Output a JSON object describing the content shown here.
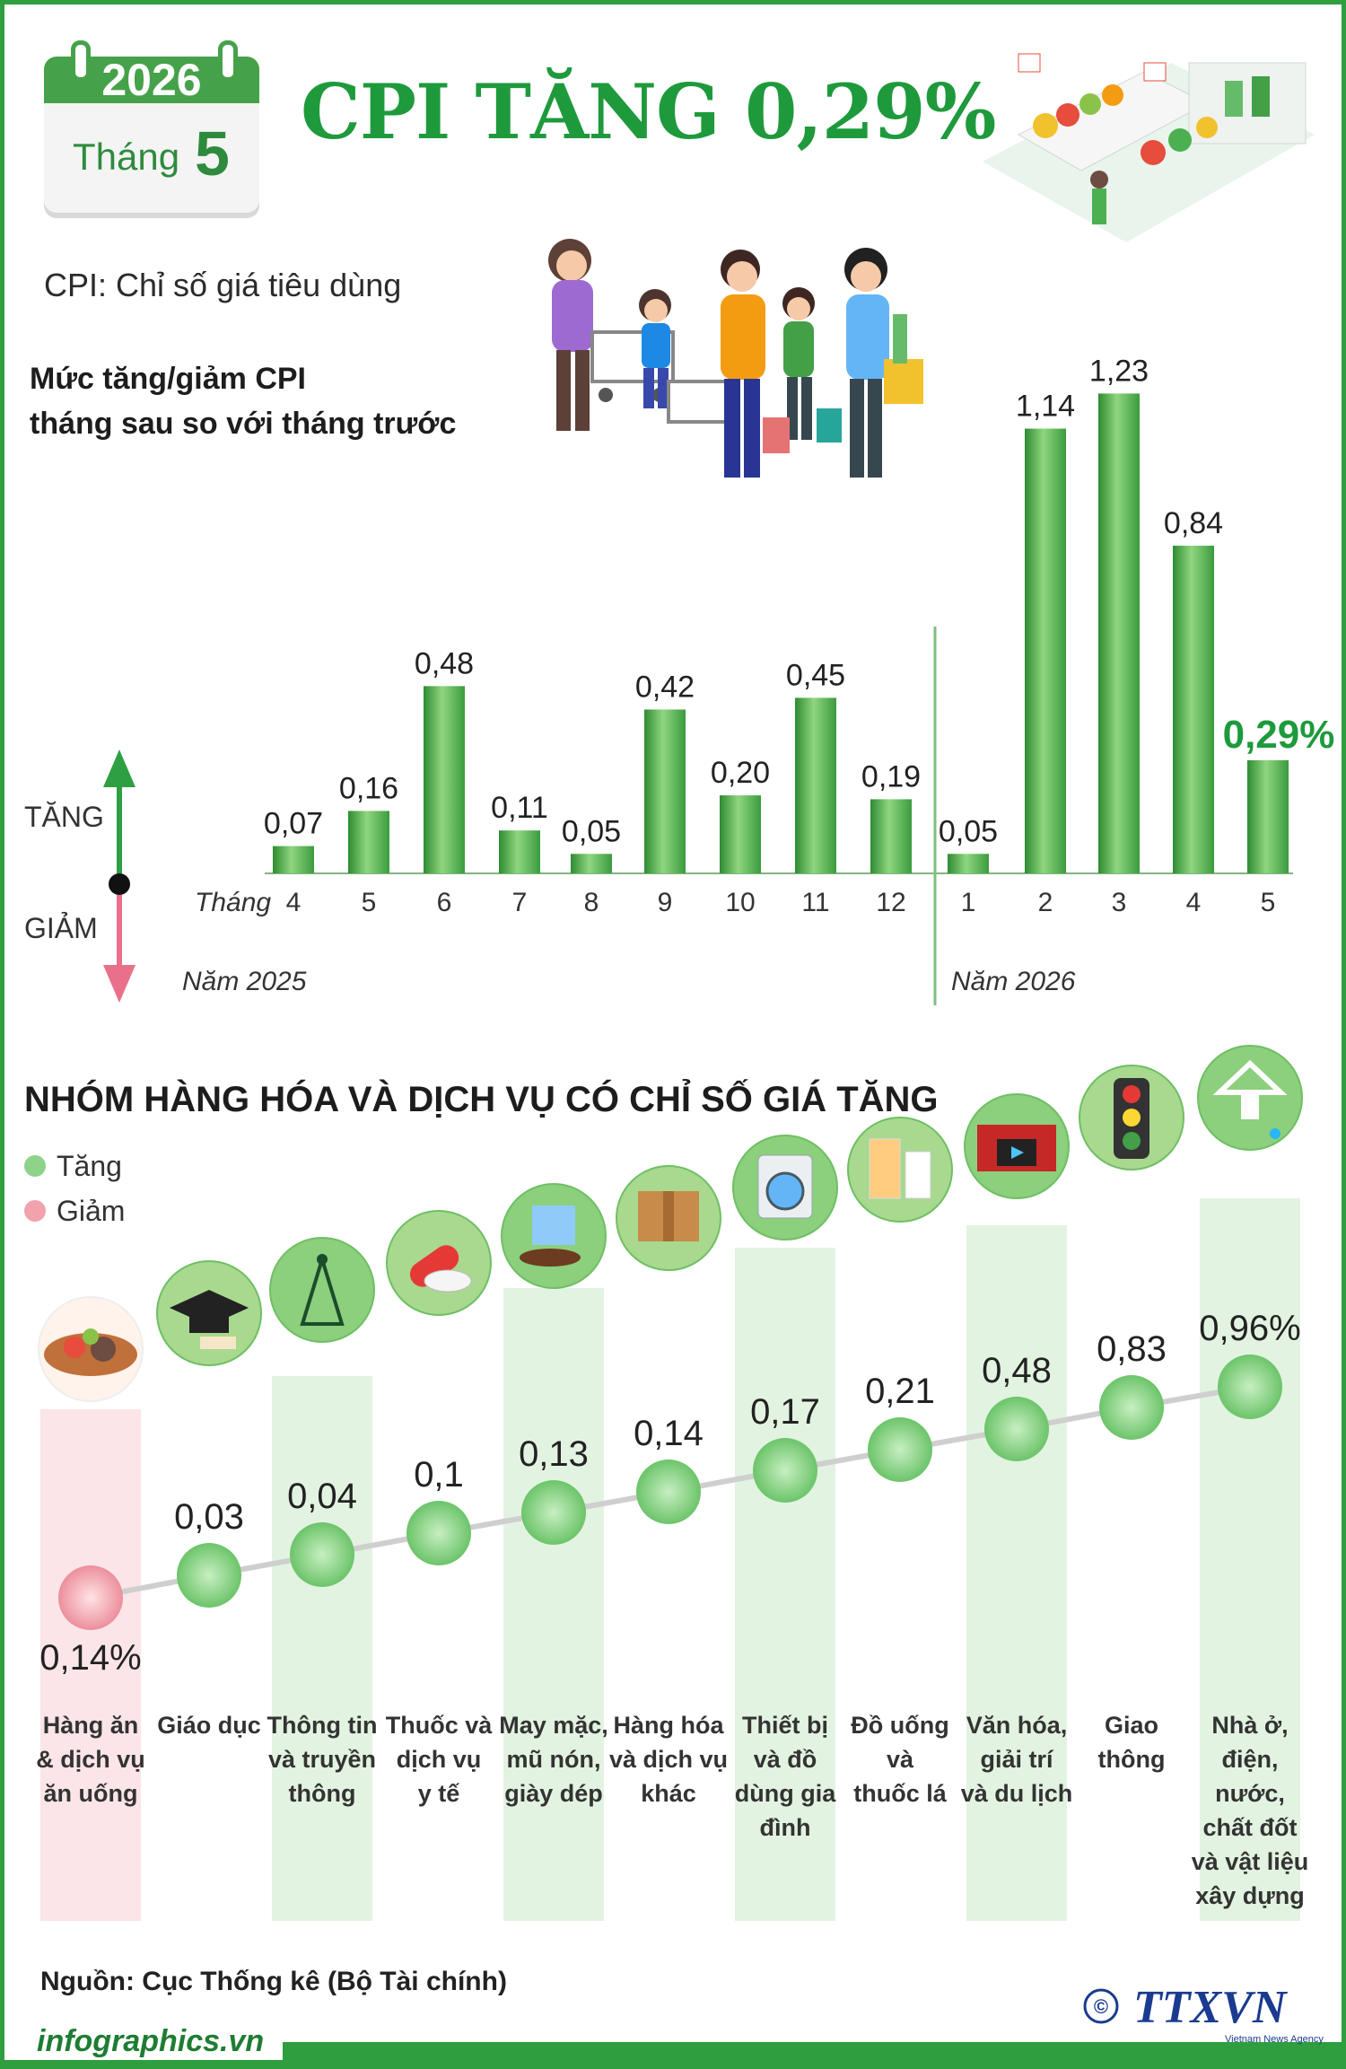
{
  "calendar": {
    "year": "2026",
    "month_label": "Tháng",
    "month_number": "5"
  },
  "title": "CPI TĂNG 0,29%",
  "subtitle": "CPI: Chỉ số giá tiêu dùng",
  "colors": {
    "green": "#3b9b3e",
    "green_light": "#8fd28a",
    "pink": "#f2a2ad",
    "title_green": "#1e9a3c",
    "arrow_up": "#2ea043",
    "arrow_down": "#e9708a"
  },
  "chart_data": [
    {
      "type": "bar",
      "title": "Mức tăng/giảm CPI tháng sau so với tháng trước",
      "title_lines": [
        "Mức tăng/giảm CPI",
        "tháng sau so với tháng trước"
      ],
      "x_prefix": "Tháng",
      "categories": [
        "4",
        "5",
        "6",
        "7",
        "8",
        "9",
        "10",
        "11",
        "12",
        "1",
        "2",
        "3",
        "4",
        "5"
      ],
      "years": [
        {
          "label": "Năm 2025",
          "months": 9
        },
        {
          "label": "Năm 2026",
          "months": 5
        }
      ],
      "values": [
        0.07,
        0.16,
        0.48,
        0.11,
        0.05,
        0.42,
        0.2,
        0.45,
        0.19,
        0.05,
        1.14,
        1.23,
        0.84,
        0.29
      ],
      "value_labels": [
        "0,07",
        "0,16",
        "0,48",
        "0,11",
        "0,05",
        "0,42",
        "0,20",
        "0,45",
        "0,19",
        "0,05",
        "1,14",
        "1,23",
        "0,84",
        "0,29%"
      ],
      "highlight_index": 13,
      "legend": {
        "up": "TĂNG",
        "down": "GIẢM"
      },
      "ylim": [
        0,
        1.3
      ],
      "grid": false
    },
    {
      "type": "line",
      "title": "NHÓM HÀNG HÓA VÀ DỊCH VỤ CÓ CHỈ SỐ GIÁ TĂNG",
      "legend": [
        {
          "name": "Tăng",
          "color": "#8fd28a"
        },
        {
          "name": "Giảm",
          "color": "#f2a2ad"
        }
      ],
      "categories": [
        "Hàng ăn & dịch vụ ăn uống",
        "Giáo dục",
        "Thông tin và truyền thông",
        "Thuốc và dịch vụ y tế",
        "May mặc, mũ nón, giày dép",
        "Hàng hóa và dịch vụ khác",
        "Thiết bị và đồ dùng gia đình",
        "Đồ uống và thuốc lá",
        "Văn hóa, giải trí và du lịch",
        "Giao thông",
        "Nhà ở, điện, nước, chất đốt và vật liệu xây dựng"
      ],
      "category_lines": [
        [
          "Hàng ăn",
          "& dịch vụ",
          "ăn uống"
        ],
        [
          "Giáo dục"
        ],
        [
          "Thông tin",
          "và truyền",
          "thông"
        ],
        [
          "Thuốc và",
          "dịch vụ",
          "y tế"
        ],
        [
          "May mặc,",
          "mũ nón,",
          "giày dép"
        ],
        [
          "Hàng hóa",
          "và dịch vụ",
          "khác"
        ],
        [
          "Thiết bị",
          "và đồ",
          "dùng gia",
          "đình"
        ],
        [
          "Đồ uống",
          "và",
          "thuốc lá"
        ],
        [
          "Văn hóa,",
          "giải trí",
          "và du lịch"
        ],
        [
          "Giao",
          "thông"
        ],
        [
          "Nhà ở,",
          "điện,",
          "nước,",
          "chất đốt",
          "và vật liệu",
          "xây dựng"
        ]
      ],
      "values": [
        -0.14,
        0.03,
        0.04,
        0.1,
        0.13,
        0.14,
        0.17,
        0.21,
        0.48,
        0.83,
        0.96
      ],
      "value_labels": [
        "0,14%",
        "0,03",
        "0,04",
        "0,1",
        "0,13",
        "0,14",
        "0,17",
        "0,21",
        "0,48",
        "0,83",
        "0,96%"
      ],
      "direction": [
        "down",
        "up",
        "up",
        "up",
        "up",
        "up",
        "up",
        "up",
        "up",
        "up",
        "up"
      ],
      "icons": [
        "food-plate-icon",
        "graduation-cap-icon",
        "antenna-tower-icon",
        "pill-capsule-icon",
        "shirt-shoes-icon",
        "cardboard-box-icon",
        "washing-machine-icon",
        "drink-cigarette-icon",
        "cinema-clapper-icon",
        "traffic-light-icon",
        "house-plug-icon"
      ]
    }
  ],
  "source": "Nguồn: Cục Thống kê (Bộ Tài chính)",
  "footer": {
    "site": "infographics.vn",
    "brand": "TTXVN",
    "brand_sub": "Vietnam News Agency",
    "copyright": "©"
  }
}
